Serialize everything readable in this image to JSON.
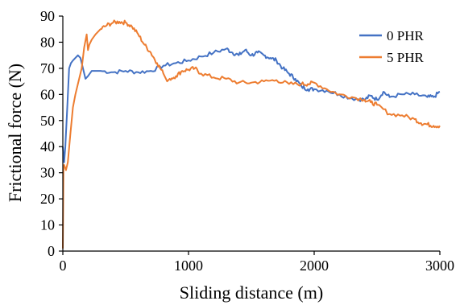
{
  "chart_data": {
    "type": "line",
    "title": "",
    "xlabel": "Sliding distance (m)",
    "ylabel": "Frictional force (N)",
    "xlim": [
      0,
      3000
    ],
    "ylim": [
      0,
      90
    ],
    "xticks": [
      0,
      1000,
      2000,
      3000
    ],
    "yticks": [
      0,
      10,
      20,
      30,
      40,
      50,
      60,
      70,
      80,
      90
    ],
    "grid": false,
    "legend_position": "top-right",
    "series": [
      {
        "name": "0 PHR",
        "color": "#4472C4",
        "x": [
          0,
          10,
          20,
          35,
          50,
          65,
          80,
          100,
          120,
          140,
          160,
          180,
          200,
          230,
          260,
          300,
          400,
          500,
          600,
          700,
          800,
          900,
          1000,
          1100,
          1200,
          1300,
          1350,
          1400,
          1450,
          1500,
          1550,
          1600,
          1650,
          1700,
          1750,
          1800,
          1850,
          1900,
          1950,
          2000,
          2100,
          2200,
          2300,
          2400,
          2450,
          2500,
          2550,
          2600,
          2700,
          2800,
          2900,
          2950,
          3000
        ],
        "y": [
          40,
          34,
          40,
          55,
          70,
          72,
          73,
          74,
          75,
          74,
          70,
          66,
          67,
          69,
          69,
          69,
          68.5,
          69,
          68.5,
          69,
          71,
          72,
          73,
          74.5,
          76,
          77.5,
          76,
          75,
          77,
          75,
          76,
          75,
          74,
          73,
          70,
          68,
          66,
          63,
          62,
          62,
          61.5,
          60,
          58.5,
          58,
          59.5,
          58,
          61,
          59,
          60,
          60,
          59,
          59,
          61
        ]
      },
      {
        "name": "5 PHR",
        "color": "#ED7D31",
        "x": [
          0,
          5,
          10,
          25,
          40,
          60,
          80,
          100,
          120,
          150,
          170,
          190,
          200,
          210,
          230,
          260,
          300,
          350,
          400,
          450,
          500,
          550,
          600,
          650,
          700,
          750,
          800,
          830,
          850,
          900,
          950,
          1000,
          1050,
          1100,
          1200,
          1300,
          1400,
          1500,
          1600,
          1700,
          1800,
          1900,
          1950,
          2000,
          2100,
          2200,
          2300,
          2400,
          2450,
          2500,
          2600,
          2700,
          2800,
          2850,
          2900,
          2950,
          3000
        ],
        "y": [
          1,
          32,
          33,
          31,
          34,
          45,
          55,
          60,
          64,
          70,
          78,
          83,
          77,
          79,
          81,
          83,
          85,
          86.5,
          87.5,
          87.8,
          87.5,
          86,
          83,
          79,
          76,
          72,
          68,
          65,
          66,
          67,
          69,
          69.5,
          70,
          68,
          66.5,
          66,
          64.5,
          64.5,
          65,
          65.5,
          64,
          64,
          64,
          64.5,
          62,
          60,
          59,
          58,
          57,
          56,
          52.5,
          52,
          50.5,
          49,
          48.5,
          48,
          48
        ]
      }
    ]
  }
}
